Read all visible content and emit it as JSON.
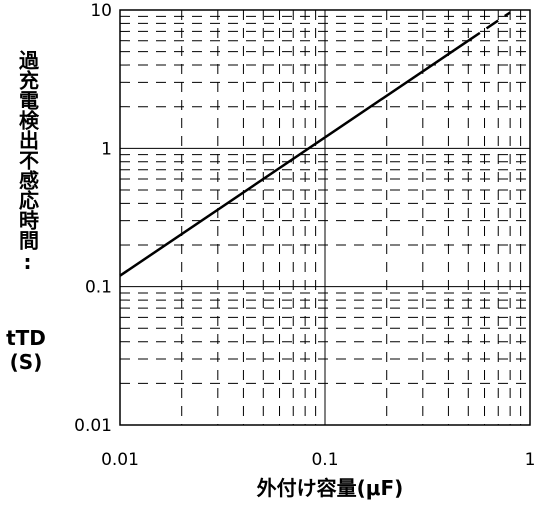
{
  "chart_data": {
    "type": "line",
    "x_scale": "log",
    "y_scale": "log",
    "xlim": [
      0.01,
      1
    ],
    "ylim": [
      0.01,
      10
    ],
    "x_ticks": [
      "0.01",
      "0.1",
      "1"
    ],
    "y_ticks": [
      "0.01",
      "0.1",
      "1",
      "10"
    ],
    "xlabel": "外付け容量(μF)",
    "ylabel": "過充電検出不感応時間:",
    "ylabel_symbol": "tTD",
    "ylabel_unit": "(S)",
    "grid": "major solid, minor dashed",
    "series": [
      {
        "style": "solid",
        "points": [
          [
            0.01,
            0.12
          ],
          [
            0.5,
            6.0
          ]
        ]
      },
      {
        "style": "dashed",
        "points": [
          [
            0.5,
            6.0
          ],
          [
            0.8,
            9.6
          ]
        ]
      }
    ]
  }
}
